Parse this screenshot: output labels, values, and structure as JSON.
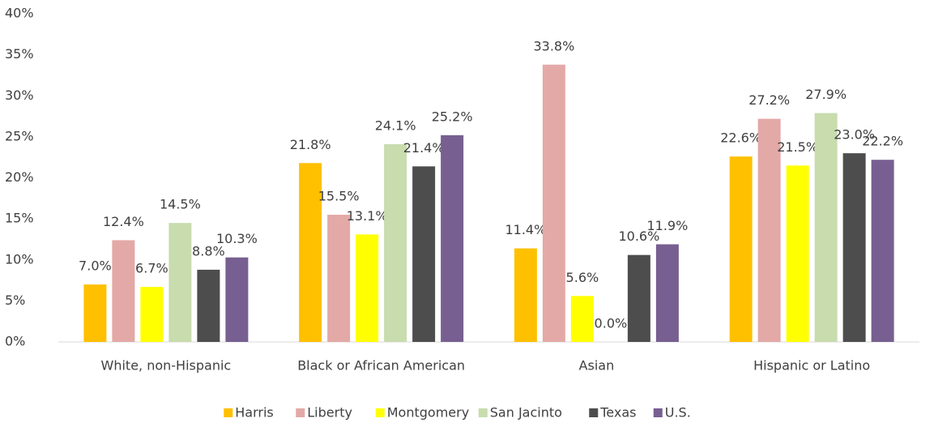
{
  "chart_data": {
    "type": "bar",
    "categories": [
      "White, non-Hispanic",
      "Black or African American",
      "Asian",
      "Hispanic or Latino"
    ],
    "series": [
      {
        "name": "Harris",
        "color": "#FFC000",
        "values": [
          7.0,
          21.8,
          11.4,
          22.6
        ],
        "value_labels": [
          "7.0%",
          "21.8%",
          "11.4%",
          "22.6%"
        ]
      },
      {
        "name": "Liberty",
        "color": "#E3A9A7",
        "values": [
          12.4,
          15.5,
          33.8,
          27.2
        ],
        "value_labels": [
          "12.4%",
          "15.5%",
          "33.8%",
          "27.2%"
        ]
      },
      {
        "name": "Montgomery",
        "color": "#FFFF00",
        "values": [
          6.7,
          13.1,
          5.6,
          21.5
        ],
        "value_labels": [
          "6.7%",
          "13.1%",
          "5.6%",
          "21.5%"
        ]
      },
      {
        "name": "San Jacinto",
        "color": "#C8DCAE",
        "values": [
          14.5,
          24.1,
          0.0,
          27.9
        ],
        "value_labels": [
          "14.5%",
          "24.1%",
          "0.0%",
          "27.9%"
        ]
      },
      {
        "name": "Texas",
        "color": "#4D4D4D",
        "values": [
          8.8,
          21.4,
          10.6,
          23.0
        ],
        "value_labels": [
          "8.8%",
          "21.4%",
          "10.6%",
          "23.0%"
        ]
      },
      {
        "name": "U.S.",
        "color": "#775F91",
        "values": [
          10.3,
          25.2,
          11.9,
          22.2
        ],
        "value_labels": [
          "10.3%",
          "25.2%",
          "11.9%",
          "22.2%"
        ]
      }
    ],
    "ylim": [
      0,
      40
    ],
    "yticks": [
      {
        "value": 0,
        "label": "0%"
      },
      {
        "value": 5,
        "label": "5%"
      },
      {
        "value": 10,
        "label": "10%"
      },
      {
        "value": 15,
        "label": "15%"
      },
      {
        "value": 20,
        "label": "20%"
      },
      {
        "value": 25,
        "label": "25%"
      },
      {
        "value": 30,
        "label": "30%"
      },
      {
        "value": 35,
        "label": "35%"
      },
      {
        "value": 40,
        "label": "40%"
      }
    ],
    "legend": "bottom"
  }
}
